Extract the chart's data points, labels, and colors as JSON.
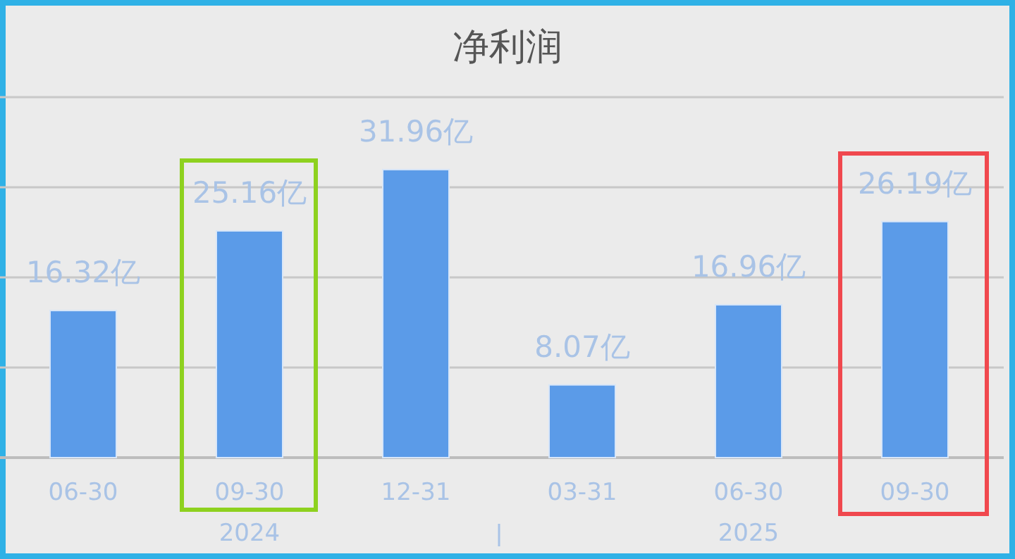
{
  "chart_data": {
    "type": "bar",
    "title": "净利润",
    "categories": [
      "06-30",
      "09-30",
      "12-31",
      "03-31",
      "06-30",
      "09-30"
    ],
    "values": [
      16.32,
      25.16,
      31.96,
      8.07,
      16.96,
      26.19
    ],
    "value_labels": [
      "16.32亿",
      "25.16亿",
      "31.96亿",
      "8.07亿",
      "16.96亿",
      "26.19亿"
    ],
    "color": "#5b9be8",
    "ylim": [
      0,
      40
    ],
    "yticks": [
      {
        "value": 0,
        "label": null
      },
      {
        "value": 10,
        "label": null
      },
      {
        "value": 20,
        "label": null
      },
      {
        "value": 30,
        "label": null
      },
      {
        "value": 40,
        "label": null
      }
    ],
    "grid": "y",
    "annotations": [
      "2024",
      "2025"
    ]
  }
}
